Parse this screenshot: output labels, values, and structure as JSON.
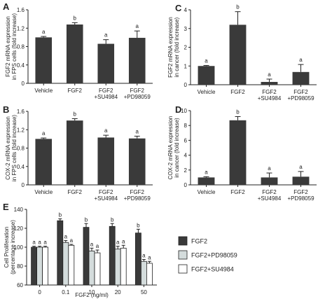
{
  "colors": {
    "dark_bar": "#3a3a3a",
    "light_bar": "#d4dcdc",
    "white_bar": "#ffffff",
    "axis": "#222222"
  },
  "chart_data": [
    {
      "panel": "A",
      "type": "bar",
      "ylabel": [
        "FGF2 mRNA expression",
        "in FPS cells (fold increase)"
      ],
      "ylim": [
        0,
        1.6
      ],
      "yticks": [
        0,
        0.4,
        0.8,
        1.2,
        1.6
      ],
      "ytick_labels": [
        "0",
        "0.4",
        "0.8",
        "1.2",
        "1.6"
      ],
      "categories": [
        [
          "Vehicle"
        ],
        [
          "FGF2"
        ],
        [
          "FGF2",
          "+SU4984"
        ],
        [
          "FGF2",
          "+PD98059"
        ]
      ],
      "values": [
        1.0,
        1.28,
        0.86,
        0.99
      ],
      "errors": [
        0.02,
        0.04,
        0.09,
        0.15
      ],
      "letters": [
        "a",
        "b",
        "a",
        "a"
      ]
    },
    {
      "panel": "B",
      "type": "bar",
      "ylabel": [
        "COX-2 mRNA expression",
        "in FPS cells (fold increase)"
      ],
      "ylim": [
        0,
        1.6
      ],
      "yticks": [
        0,
        0.4,
        0.8,
        1.2,
        1.6
      ],
      "ytick_labels": [
        "0",
        "0.4",
        "0.8",
        "1.2",
        "1.6"
      ],
      "categories": [
        [
          "Vehicle"
        ],
        [
          "FGF2"
        ],
        [
          "FGF2",
          "+SU4984"
        ],
        [
          "FGF2",
          "+PD98059"
        ]
      ],
      "values": [
        1.0,
        1.4,
        1.03,
        1.01
      ],
      "errors": [
        0.02,
        0.04,
        0.05,
        0.05
      ],
      "letters": [
        "a",
        "b",
        "a",
        "a"
      ]
    },
    {
      "panel": "C",
      "type": "bar",
      "ylabel": [
        "FGF2 mRNA expression",
        "in cancer (fold increase)"
      ],
      "ylim": [
        0,
        4
      ],
      "yticks": [
        0,
        1,
        2,
        3,
        4
      ],
      "ytick_labels": [
        "0",
        "1",
        "2",
        "3",
        "4"
      ],
      "categories": [
        [
          "Vehicle"
        ],
        [
          "FGF2"
        ],
        [
          "FGF2",
          "+SU4984"
        ],
        [
          "FGF2",
          "+PD98059"
        ]
      ],
      "values": [
        1.0,
        3.2,
        0.15,
        0.68
      ],
      "errors": [
        0.03,
        0.7,
        0.15,
        0.4
      ],
      "letters": [
        "a",
        "b",
        "a",
        "a"
      ]
    },
    {
      "panel": "D",
      "type": "bar",
      "ylabel": [
        "COX-2 mRNA expression",
        "in cancer (fold increase)"
      ],
      "ylim": [
        0,
        10
      ],
      "yticks": [
        0,
        2,
        4,
        6,
        8,
        10
      ],
      "ytick_labels": [
        "0",
        "2",
        "4",
        "6",
        "8",
        "10"
      ],
      "categories": [
        [
          "Vehicle"
        ],
        [
          "FGF2"
        ],
        [
          "FGF2",
          "+SU4984"
        ],
        [
          "FGF2",
          "+PD98059"
        ]
      ],
      "values": [
        1.0,
        8.7,
        1.0,
        1.1
      ],
      "errors": [
        0.1,
        0.5,
        0.6,
        0.7
      ],
      "letters": [
        "a",
        "b",
        "a",
        "a"
      ]
    },
    {
      "panel": "E",
      "type": "bar",
      "ylabel": [
        "Cell Proliferation",
        "(percentage increase)"
      ],
      "xlabel": "FGF2 (ng/ml)",
      "ylim": [
        60,
        140
      ],
      "yticks": [
        60,
        80,
        100,
        120,
        140
      ],
      "ytick_labels": [
        "60",
        "80",
        "100",
        "120",
        "140"
      ],
      "categories": [
        "0",
        "0.1",
        "10",
        "20",
        "50"
      ],
      "series": [
        {
          "name": "FGF2",
          "values": [
            100,
            128,
            121,
            122,
            115
          ],
          "errors": [
            1,
            2,
            4,
            3,
            4
          ],
          "letters": [
            "a",
            "b",
            "b",
            "b",
            "b"
          ]
        },
        {
          "name": "FGF2+PD98059",
          "values": [
            100,
            105,
            96,
            98,
            85
          ],
          "errors": [
            1,
            2,
            3,
            3,
            2
          ],
          "letters": [
            "a",
            "a",
            "a",
            "a",
            "a"
          ]
        },
        {
          "name": "FGF2+SU4984",
          "values": [
            100,
            102,
            94,
            99,
            83
          ],
          "errors": [
            1,
            1,
            3,
            3,
            2
          ],
          "letters": [
            "a",
            "a",
            "a",
            "a",
            "a"
          ]
        }
      ]
    }
  ]
}
